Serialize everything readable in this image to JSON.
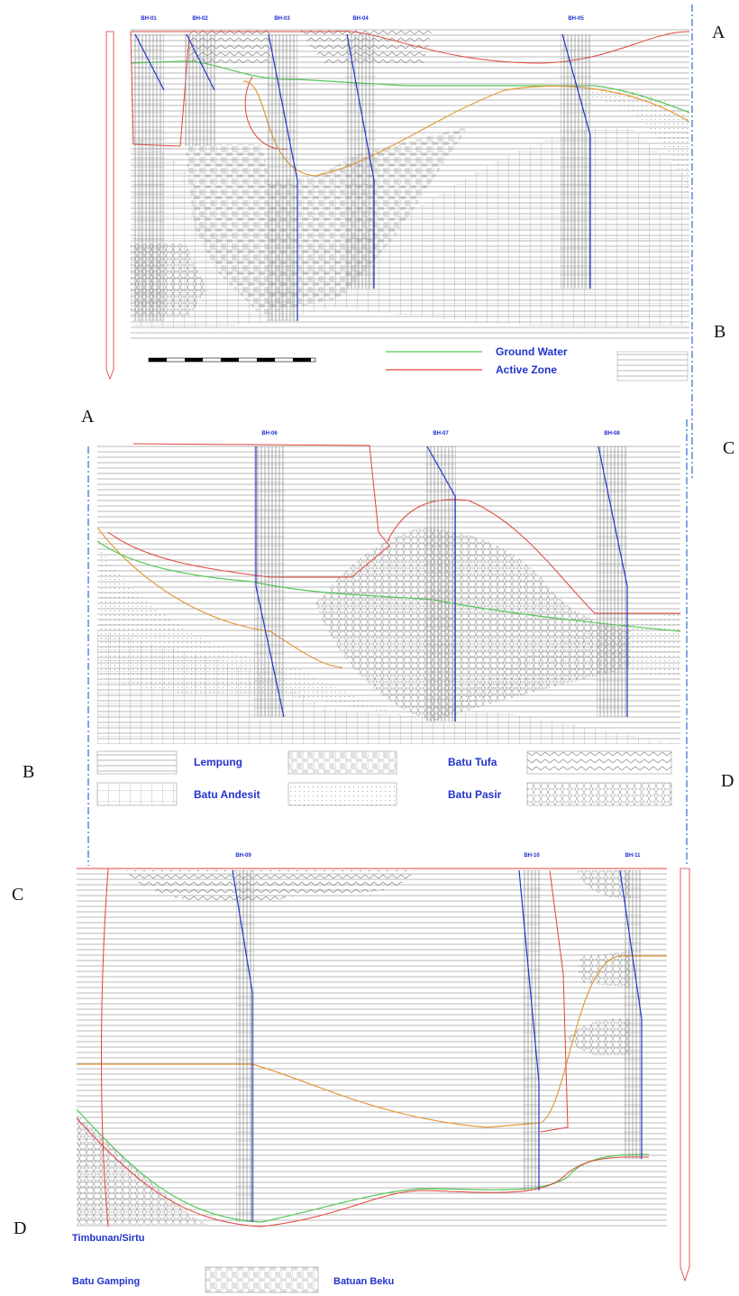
{
  "section_markers": [
    "A",
    "B",
    "A",
    "C",
    "B",
    "D",
    "C",
    "D"
  ],
  "panel1": {
    "boreholes": [
      "BH-01",
      "BH-02",
      "BH-03",
      "BH-04",
      "BH-05"
    ],
    "legend": [
      "Ground Water",
      "Active Zone"
    ]
  },
  "panel2": {
    "boreholes": [
      "BH-06",
      "BH-07",
      "BH-08"
    ],
    "legend": [
      "Lempung",
      "Batu Tufa",
      "Batu Andesit",
      "Batu Pasir"
    ]
  },
  "panel3": {
    "boreholes": [
      "BH-09",
      "BH-10",
      "BH-11"
    ],
    "legend": [
      "Timbunan/Sirtu",
      "Batu Gamping",
      "Batuan Beku"
    ]
  }
}
